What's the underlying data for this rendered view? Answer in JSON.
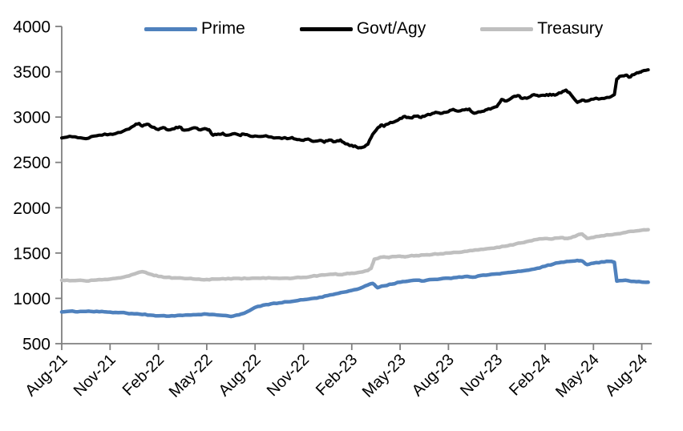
{
  "chart_data": {
    "type": "line",
    "title": "",
    "background": "#FFFFFF",
    "axis_color": "#808080",
    "text_color": "#000000",
    "grid": false,
    "x_unit": "months since Aug-2021",
    "x_range": [
      0,
      36.4
    ],
    "x_tick_interval_months": 3,
    "x_tick_labels": [
      "Aug-21",
      "Nov-21",
      "Feb-22",
      "May-22",
      "Aug-22",
      "Nov-22",
      "Feb-23",
      "May-23",
      "Aug-23",
      "Nov-23",
      "Feb-24",
      "May-24",
      "Aug-24"
    ],
    "ylim": [
      500,
      4000
    ],
    "y_ticks": [
      500,
      1000,
      1500,
      2000,
      2500,
      3000,
      3500,
      4000
    ],
    "legend": {
      "position": "top",
      "items": [
        {
          "label": "Prime",
          "color": "#4F81BD"
        },
        {
          "label": "Govt/Agy",
          "color": "#000000"
        },
        {
          "label": "Treasury",
          "color": "#BFBFBF"
        }
      ]
    },
    "series": [
      {
        "name": "Prime",
        "color": "#4F81BD",
        "width": 4.5,
        "points": [
          [
            0,
            850
          ],
          [
            0.5,
            858
          ],
          [
            1,
            852
          ],
          [
            1.5,
            856
          ],
          [
            2,
            853
          ],
          [
            2.5,
            855
          ],
          [
            3,
            848
          ],
          [
            3.5,
            843
          ],
          [
            4,
            838
          ],
          [
            4.5,
            830
          ],
          [
            5,
            822
          ],
          [
            5.5,
            815
          ],
          [
            6,
            808
          ],
          [
            6.5,
            804
          ],
          [
            7,
            806
          ],
          [
            7.5,
            812
          ],
          [
            8,
            816
          ],
          [
            8.5,
            822
          ],
          [
            9,
            826
          ],
          [
            9.5,
            820
          ],
          [
            10,
            812
          ],
          [
            10.5,
            800
          ],
          [
            11,
            818
          ],
          [
            11.5,
            852
          ],
          [
            12,
            900
          ],
          [
            12.5,
            925
          ],
          [
            13,
            940
          ],
          [
            13.5,
            950
          ],
          [
            14,
            962
          ],
          [
            14.5,
            972
          ],
          [
            15,
            985
          ],
          [
            15.5,
            998
          ],
          [
            16,
            1012
          ],
          [
            16.5,
            1030
          ],
          [
            17,
            1050
          ],
          [
            17.5,
            1068
          ],
          [
            18,
            1088
          ],
          [
            18.5,
            1110
          ],
          [
            19,
            1148
          ],
          [
            19.3,
            1165
          ],
          [
            19.6,
            1118
          ],
          [
            20,
            1138
          ],
          [
            20.5,
            1158
          ],
          [
            21,
            1178
          ],
          [
            21.5,
            1190
          ],
          [
            22,
            1200
          ],
          [
            22.5,
            1193
          ],
          [
            23,
            1208
          ],
          [
            23.5,
            1215
          ],
          [
            24,
            1222
          ],
          [
            24.5,
            1230
          ],
          [
            25,
            1240
          ],
          [
            25.5,
            1234
          ],
          [
            26,
            1252
          ],
          [
            26.5,
            1260
          ],
          [
            27,
            1270
          ],
          [
            27.5,
            1280
          ],
          [
            28,
            1290
          ],
          [
            28.5,
            1300
          ],
          [
            29,
            1312
          ],
          [
            29.5,
            1332
          ],
          [
            30,
            1355
          ],
          [
            30.5,
            1378
          ],
          [
            31,
            1398
          ],
          [
            31.5,
            1408
          ],
          [
            32,
            1418
          ],
          [
            32.3,
            1412
          ],
          [
            32.6,
            1372
          ],
          [
            33,
            1388
          ],
          [
            33.5,
            1402
          ],
          [
            34,
            1408
          ],
          [
            34.3,
            1398
          ],
          [
            34.45,
            1190
          ],
          [
            35,
            1200
          ],
          [
            35.5,
            1188
          ],
          [
            36,
            1180
          ],
          [
            36.4,
            1178
          ]
        ]
      },
      {
        "name": "Govt/Agy",
        "color": "#000000",
        "width": 4,
        "points": [
          [
            0,
            2770
          ],
          [
            0.5,
            2788
          ],
          [
            1,
            2772
          ],
          [
            1.5,
            2762
          ],
          [
            2,
            2790
          ],
          [
            2.5,
            2800
          ],
          [
            3,
            2812
          ],
          [
            3.5,
            2830
          ],
          [
            4,
            2862
          ],
          [
            4.5,
            2905
          ],
          [
            4.8,
            2930
          ],
          [
            5,
            2900
          ],
          [
            5.3,
            2922
          ],
          [
            5.6,
            2890
          ],
          [
            6,
            2862
          ],
          [
            6.3,
            2885
          ],
          [
            6.6,
            2858
          ],
          [
            7,
            2872
          ],
          [
            7.3,
            2892
          ],
          [
            7.6,
            2855
          ],
          [
            8,
            2870
          ],
          [
            8.3,
            2882
          ],
          [
            8.6,
            2858
          ],
          [
            9,
            2868
          ],
          [
            9.2,
            2848
          ],
          [
            9.4,
            2800
          ],
          [
            9.7,
            2812
          ],
          [
            10,
            2822
          ],
          [
            10.3,
            2800
          ],
          [
            10.6,
            2815
          ],
          [
            11,
            2802
          ],
          [
            11.3,
            2812
          ],
          [
            11.6,
            2798
          ],
          [
            12,
            2792
          ],
          [
            12.5,
            2788
          ],
          [
            13,
            2780
          ],
          [
            13.5,
            2772
          ],
          [
            14,
            2762
          ],
          [
            14.3,
            2775
          ],
          [
            14.6,
            2752
          ],
          [
            15,
            2742
          ],
          [
            15.3,
            2758
          ],
          [
            15.6,
            2732
          ],
          [
            16,
            2742
          ],
          [
            16.3,
            2722
          ],
          [
            16.6,
            2748
          ],
          [
            17,
            2730
          ],
          [
            17.3,
            2748
          ],
          [
            17.6,
            2705
          ],
          [
            18,
            2688
          ],
          [
            18.3,
            2670
          ],
          [
            18.6,
            2662
          ],
          [
            18.8,
            2675
          ],
          [
            19,
            2700
          ],
          [
            19.3,
            2810
          ],
          [
            19.6,
            2878
          ],
          [
            19.8,
            2910
          ],
          [
            20,
            2898
          ],
          [
            20.3,
            2928
          ],
          [
            20.6,
            2945
          ],
          [
            21,
            2985
          ],
          [
            21.3,
            3008
          ],
          [
            21.6,
            2992
          ],
          [
            22,
            3010
          ],
          [
            22.3,
            2995
          ],
          [
            22.6,
            3018
          ],
          [
            23,
            3040
          ],
          [
            23.3,
            3050
          ],
          [
            23.6,
            3042
          ],
          [
            24,
            3060
          ],
          [
            24.3,
            3085
          ],
          [
            24.6,
            3065
          ],
          [
            25,
            3080
          ],
          [
            25.3,
            3090
          ],
          [
            25.6,
            3042
          ],
          [
            26,
            3058
          ],
          [
            26.3,
            3078
          ],
          [
            26.6,
            3088
          ],
          [
            27,
            3115
          ],
          [
            27.3,
            3195
          ],
          [
            27.6,
            3178
          ],
          [
            28,
            3222
          ],
          [
            28.3,
            3238
          ],
          [
            28.6,
            3205
          ],
          [
            29,
            3218
          ],
          [
            29.3,
            3248
          ],
          [
            29.6,
            3232
          ],
          [
            30,
            3238
          ],
          [
            30.3,
            3252
          ],
          [
            30.6,
            3242
          ],
          [
            31,
            3268
          ],
          [
            31.3,
            3298
          ],
          [
            31.6,
            3248
          ],
          [
            32,
            3162
          ],
          [
            32.3,
            3188
          ],
          [
            32.6,
            3178
          ],
          [
            33,
            3198
          ],
          [
            33.5,
            3205
          ],
          [
            34,
            3218
          ],
          [
            34.3,
            3248
          ],
          [
            34.45,
            3420
          ],
          [
            34.7,
            3452
          ],
          [
            35,
            3462
          ],
          [
            35.2,
            3440
          ],
          [
            35.5,
            3468
          ],
          [
            35.8,
            3488
          ],
          [
            36,
            3505
          ],
          [
            36.4,
            3522
          ]
        ]
      },
      {
        "name": "Treasury",
        "color": "#BFBFBF",
        "width": 4.5,
        "points": [
          [
            0,
            1200
          ],
          [
            0.5,
            1195
          ],
          [
            1,
            1198
          ],
          [
            1.5,
            1192
          ],
          [
            2,
            1200
          ],
          [
            2.5,
            1205
          ],
          [
            3,
            1212
          ],
          [
            3.5,
            1225
          ],
          [
            4,
            1242
          ],
          [
            4.5,
            1268
          ],
          [
            5,
            1295
          ],
          [
            5.3,
            1278
          ],
          [
            5.6,
            1262
          ],
          [
            6,
            1242
          ],
          [
            6.5,
            1232
          ],
          [
            7,
            1226
          ],
          [
            7.5,
            1222
          ],
          [
            8,
            1220
          ],
          [
            8.5,
            1212
          ],
          [
            9,
            1208
          ],
          [
            9.5,
            1212
          ],
          [
            10,
            1218
          ],
          [
            10.5,
            1214
          ],
          [
            11,
            1220
          ],
          [
            11.5,
            1218
          ],
          [
            12,
            1222
          ],
          [
            12.5,
            1226
          ],
          [
            13,
            1224
          ],
          [
            13.5,
            1220
          ],
          [
            14,
            1222
          ],
          [
            14.5,
            1228
          ],
          [
            15,
            1232
          ],
          [
            15.5,
            1242
          ],
          [
            16,
            1255
          ],
          [
            16.5,
            1262
          ],
          [
            17,
            1270
          ],
          [
            17.3,
            1262
          ],
          [
            17.6,
            1270
          ],
          [
            18,
            1278
          ],
          [
            18.5,
            1288
          ],
          [
            19,
            1308
          ],
          [
            19.2,
            1330
          ],
          [
            19.4,
            1432
          ],
          [
            19.7,
            1448
          ],
          [
            20,
            1458
          ],
          [
            20.3,
            1450
          ],
          [
            20.6,
            1462
          ],
          [
            21,
            1465
          ],
          [
            21.3,
            1458
          ],
          [
            21.6,
            1468
          ],
          [
            22,
            1472
          ],
          [
            22.5,
            1478
          ],
          [
            23,
            1485
          ],
          [
            23.5,
            1492
          ],
          [
            24,
            1500
          ],
          [
            24.5,
            1508
          ],
          [
            25,
            1518
          ],
          [
            25.5,
            1528
          ],
          [
            26,
            1540
          ],
          [
            26.5,
            1550
          ],
          [
            27,
            1562
          ],
          [
            27.5,
            1575
          ],
          [
            28,
            1590
          ],
          [
            28.5,
            1612
          ],
          [
            29,
            1632
          ],
          [
            29.5,
            1650
          ],
          [
            30,
            1660
          ],
          [
            30.3,
            1655
          ],
          [
            30.6,
            1665
          ],
          [
            31,
            1670
          ],
          [
            31.3,
            1662
          ],
          [
            31.6,
            1668
          ],
          [
            32,
            1698
          ],
          [
            32.3,
            1710
          ],
          [
            32.6,
            1662
          ],
          [
            33,
            1672
          ],
          [
            33.5,
            1690
          ],
          [
            34,
            1700
          ],
          [
            34.5,
            1712
          ],
          [
            35,
            1728
          ],
          [
            35.5,
            1740
          ],
          [
            36,
            1752
          ],
          [
            36.4,
            1758
          ]
        ]
      }
    ]
  }
}
